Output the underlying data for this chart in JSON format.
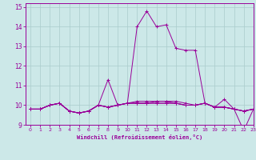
{
  "title": "",
  "xlabel": "Windchill (Refroidissement éolien,°C)",
  "ylabel": "",
  "background_color": "#cce8e8",
  "line_color": "#990099",
  "grid_color": "#aacccc",
  "xlim": [
    -0.5,
    23
  ],
  "ylim": [
    9,
    15.2
  ],
  "yticks": [
    9,
    10,
    11,
    12,
    13,
    14,
    15
  ],
  "xticks": [
    0,
    1,
    2,
    3,
    4,
    5,
    6,
    7,
    8,
    9,
    10,
    11,
    12,
    13,
    14,
    15,
    16,
    17,
    18,
    19,
    20,
    21,
    22,
    23
  ],
  "series": [
    [
      9.8,
      9.8,
      10.0,
      10.1,
      9.7,
      9.6,
      9.7,
      10.0,
      11.3,
      10.0,
      10.1,
      14.0,
      14.8,
      14.0,
      14.1,
      12.9,
      12.8,
      12.8,
      10.1,
      9.9,
      10.3,
      9.8,
      8.7,
      9.8
    ],
    [
      9.8,
      9.8,
      10.0,
      10.1,
      9.7,
      9.6,
      9.7,
      10.0,
      9.9,
      10.0,
      10.1,
      10.2,
      10.2,
      10.2,
      10.2,
      10.2,
      10.1,
      10.0,
      10.1,
      9.9,
      9.9,
      9.8,
      9.7,
      9.8
    ],
    [
      9.8,
      9.8,
      10.0,
      10.1,
      9.7,
      9.6,
      9.7,
      10.0,
      9.9,
      10.0,
      10.1,
      10.1,
      10.1,
      10.2,
      10.2,
      10.1,
      10.0,
      10.0,
      10.1,
      9.9,
      9.9,
      9.8,
      9.7,
      9.8
    ],
    [
      9.8,
      9.8,
      10.0,
      10.1,
      9.7,
      9.6,
      9.7,
      10.0,
      9.9,
      10.0,
      10.1,
      10.1,
      10.1,
      10.1,
      10.1,
      10.1,
      10.0,
      10.0,
      10.1,
      9.9,
      9.9,
      9.8,
      9.7,
      9.8
    ],
    [
      9.8,
      9.8,
      10.0,
      10.1,
      9.7,
      9.6,
      9.7,
      10.0,
      9.9,
      10.0,
      10.1,
      10.1,
      10.1,
      10.1,
      10.1,
      10.1,
      10.0,
      10.0,
      10.1,
      9.9,
      9.9,
      9.8,
      9.7,
      9.8
    ]
  ]
}
